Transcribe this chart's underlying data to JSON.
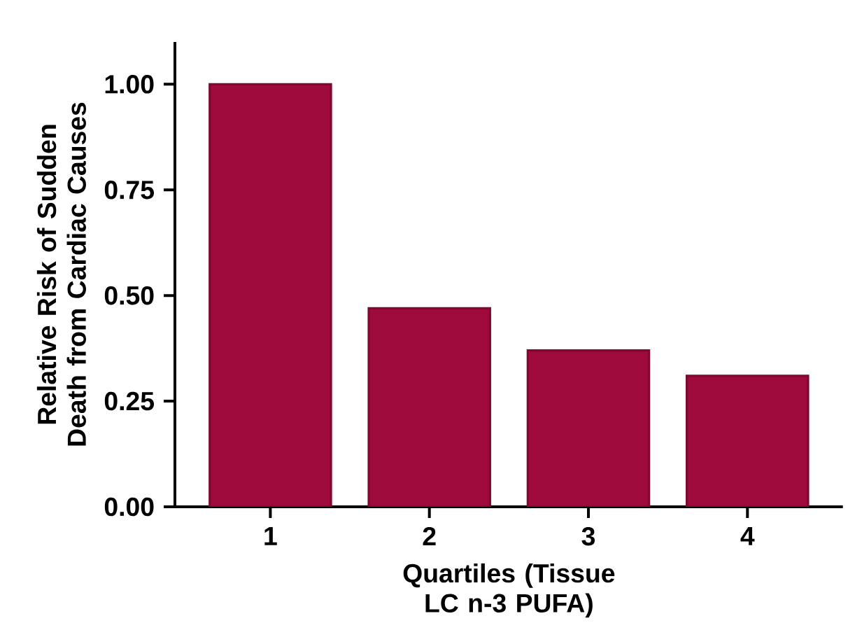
{
  "chart_data": {
    "type": "bar",
    "categories": [
      "1",
      "2",
      "3",
      "4"
    ],
    "values": [
      1.0,
      0.47,
      0.37,
      0.31
    ],
    "color": "#9e0a3c",
    "xlabel": "Quartiles (Tissue LC n-3 PUFA)",
    "ylabel": "Relative Risk of Sudden Death from Cardiac Causes",
    "ylim": [
      0,
      1.1
    ],
    "yticks": [
      {
        "value": 0,
        "label": "0.00"
      },
      {
        "value": 0.25,
        "label": "0.25"
      },
      {
        "value": 0.5,
        "label": "0.50"
      },
      {
        "value": 0.75,
        "label": "0.75"
      },
      {
        "value": 1.0,
        "label": "1.00"
      }
    ]
  }
}
